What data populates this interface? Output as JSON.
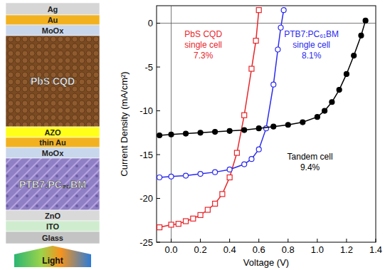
{
  "chart_data": {
    "type": "line",
    "x_label": "Voltage (V)",
    "y_label": "Current Density (mA/cm²)",
    "xlim": [
      -0.1,
      1.4
    ],
    "ylim": [
      -25,
      2
    ],
    "xticks": [
      {
        "value": 0,
        "label": "0.0"
      },
      {
        "value": 0.2,
        "label": "0.2"
      },
      {
        "value": 0.4,
        "label": "0.4"
      },
      {
        "value": 0.6,
        "label": "0.6"
      },
      {
        "value": 0.8,
        "label": "0.8"
      },
      {
        "value": 1.0,
        "label": "1.0"
      },
      {
        "value": 1.2,
        "label": "1.2"
      },
      {
        "value": 1.4,
        "label": "1.4"
      }
    ],
    "yticks": [
      -25,
      -20,
      -15,
      -10,
      -5,
      0
    ],
    "grid": false,
    "series": [
      {
        "color": "#e8262b",
        "marker": "open-square",
        "line_style": "solid",
        "x": [
          -0.08,
          0,
          0.05,
          0.1,
          0.15,
          0.2,
          0.25,
          0.3,
          0.35,
          0.4,
          0.45,
          0.5,
          0.55,
          0.58,
          0.6
        ],
        "values": [
          -23.3,
          -23.0,
          -22.9,
          -22.6,
          -22.3,
          -21.9,
          -21.3,
          -20.6,
          -19.5,
          -17.6,
          -14.8,
          -10.5,
          -5.2,
          -2.0,
          1.5
        ]
      },
      {
        "color": "#2a2aee",
        "marker": "open-circle",
        "line_style": "solid",
        "x": [
          -0.08,
          0,
          0.1,
          0.2,
          0.3,
          0.4,
          0.5,
          0.55,
          0.6,
          0.65,
          0.7,
          0.73,
          0.75,
          0.77
        ],
        "values": [
          -17.6,
          -17.5,
          -17.4,
          -17.2,
          -17.0,
          -16.7,
          -16.1,
          -15.5,
          -14.4,
          -12.0,
          -7.0,
          -3.0,
          -0.5,
          1.5
        ]
      },
      {
        "color": "#000000",
        "marker": "filled-circle",
        "line_style": "solid",
        "x": [
          -0.08,
          0,
          0.1,
          0.2,
          0.3,
          0.4,
          0.5,
          0.6,
          0.7,
          0.8,
          0.9,
          1.0,
          1.05,
          1.1,
          1.15,
          1.2,
          1.25,
          1.3,
          1.33
        ],
        "values": [
          -12.8,
          -12.7,
          -12.6,
          -12.5,
          -12.4,
          -12.3,
          -12.2,
          -12.0,
          -11.8,
          -11.6,
          -11.3,
          -10.7,
          -10.0,
          -9.0,
          -7.6,
          -5.8,
          -3.7,
          -1.4,
          0.3
        ]
      }
    ],
    "annotations": [
      {
        "lines": [
          "PbS CQD",
          "single cell",
          "7.3%"
        ],
        "color": "#e8262b"
      },
      {
        "lines": [
          "PTB7:PC₆₁BM",
          "single cell",
          "8.1%"
        ],
        "color": "#2a2aee"
      },
      {
        "lines": [
          "Tandem cell",
          "9.4%"
        ],
        "color": "#000000"
      }
    ]
  },
  "stack": {
    "layers": [
      {
        "label": "Ag",
        "color": "#d6d6d6"
      },
      {
        "label": "Au",
        "color": "#f2b21f"
      },
      {
        "label": "MoOx",
        "color": "#c9d7ec"
      },
      {
        "label": "PbS CQD",
        "color": "#7a4a22"
      },
      {
        "label": "AZO",
        "color": "#ffff1a"
      },
      {
        "label": "thin Au",
        "color": "#f2b21f"
      },
      {
        "label": "MoOx",
        "color": "#c9d7ec"
      },
      {
        "label": "PTB7:PC₆₁BM",
        "color": "#8f7fc4"
      },
      {
        "label": "ZnO",
        "color": "#d9d9d9"
      },
      {
        "label": "ITO",
        "color": "#cfeccf"
      },
      {
        "label": "Glass",
        "color": "#c4c4c4"
      }
    ],
    "light_label": "Light"
  }
}
